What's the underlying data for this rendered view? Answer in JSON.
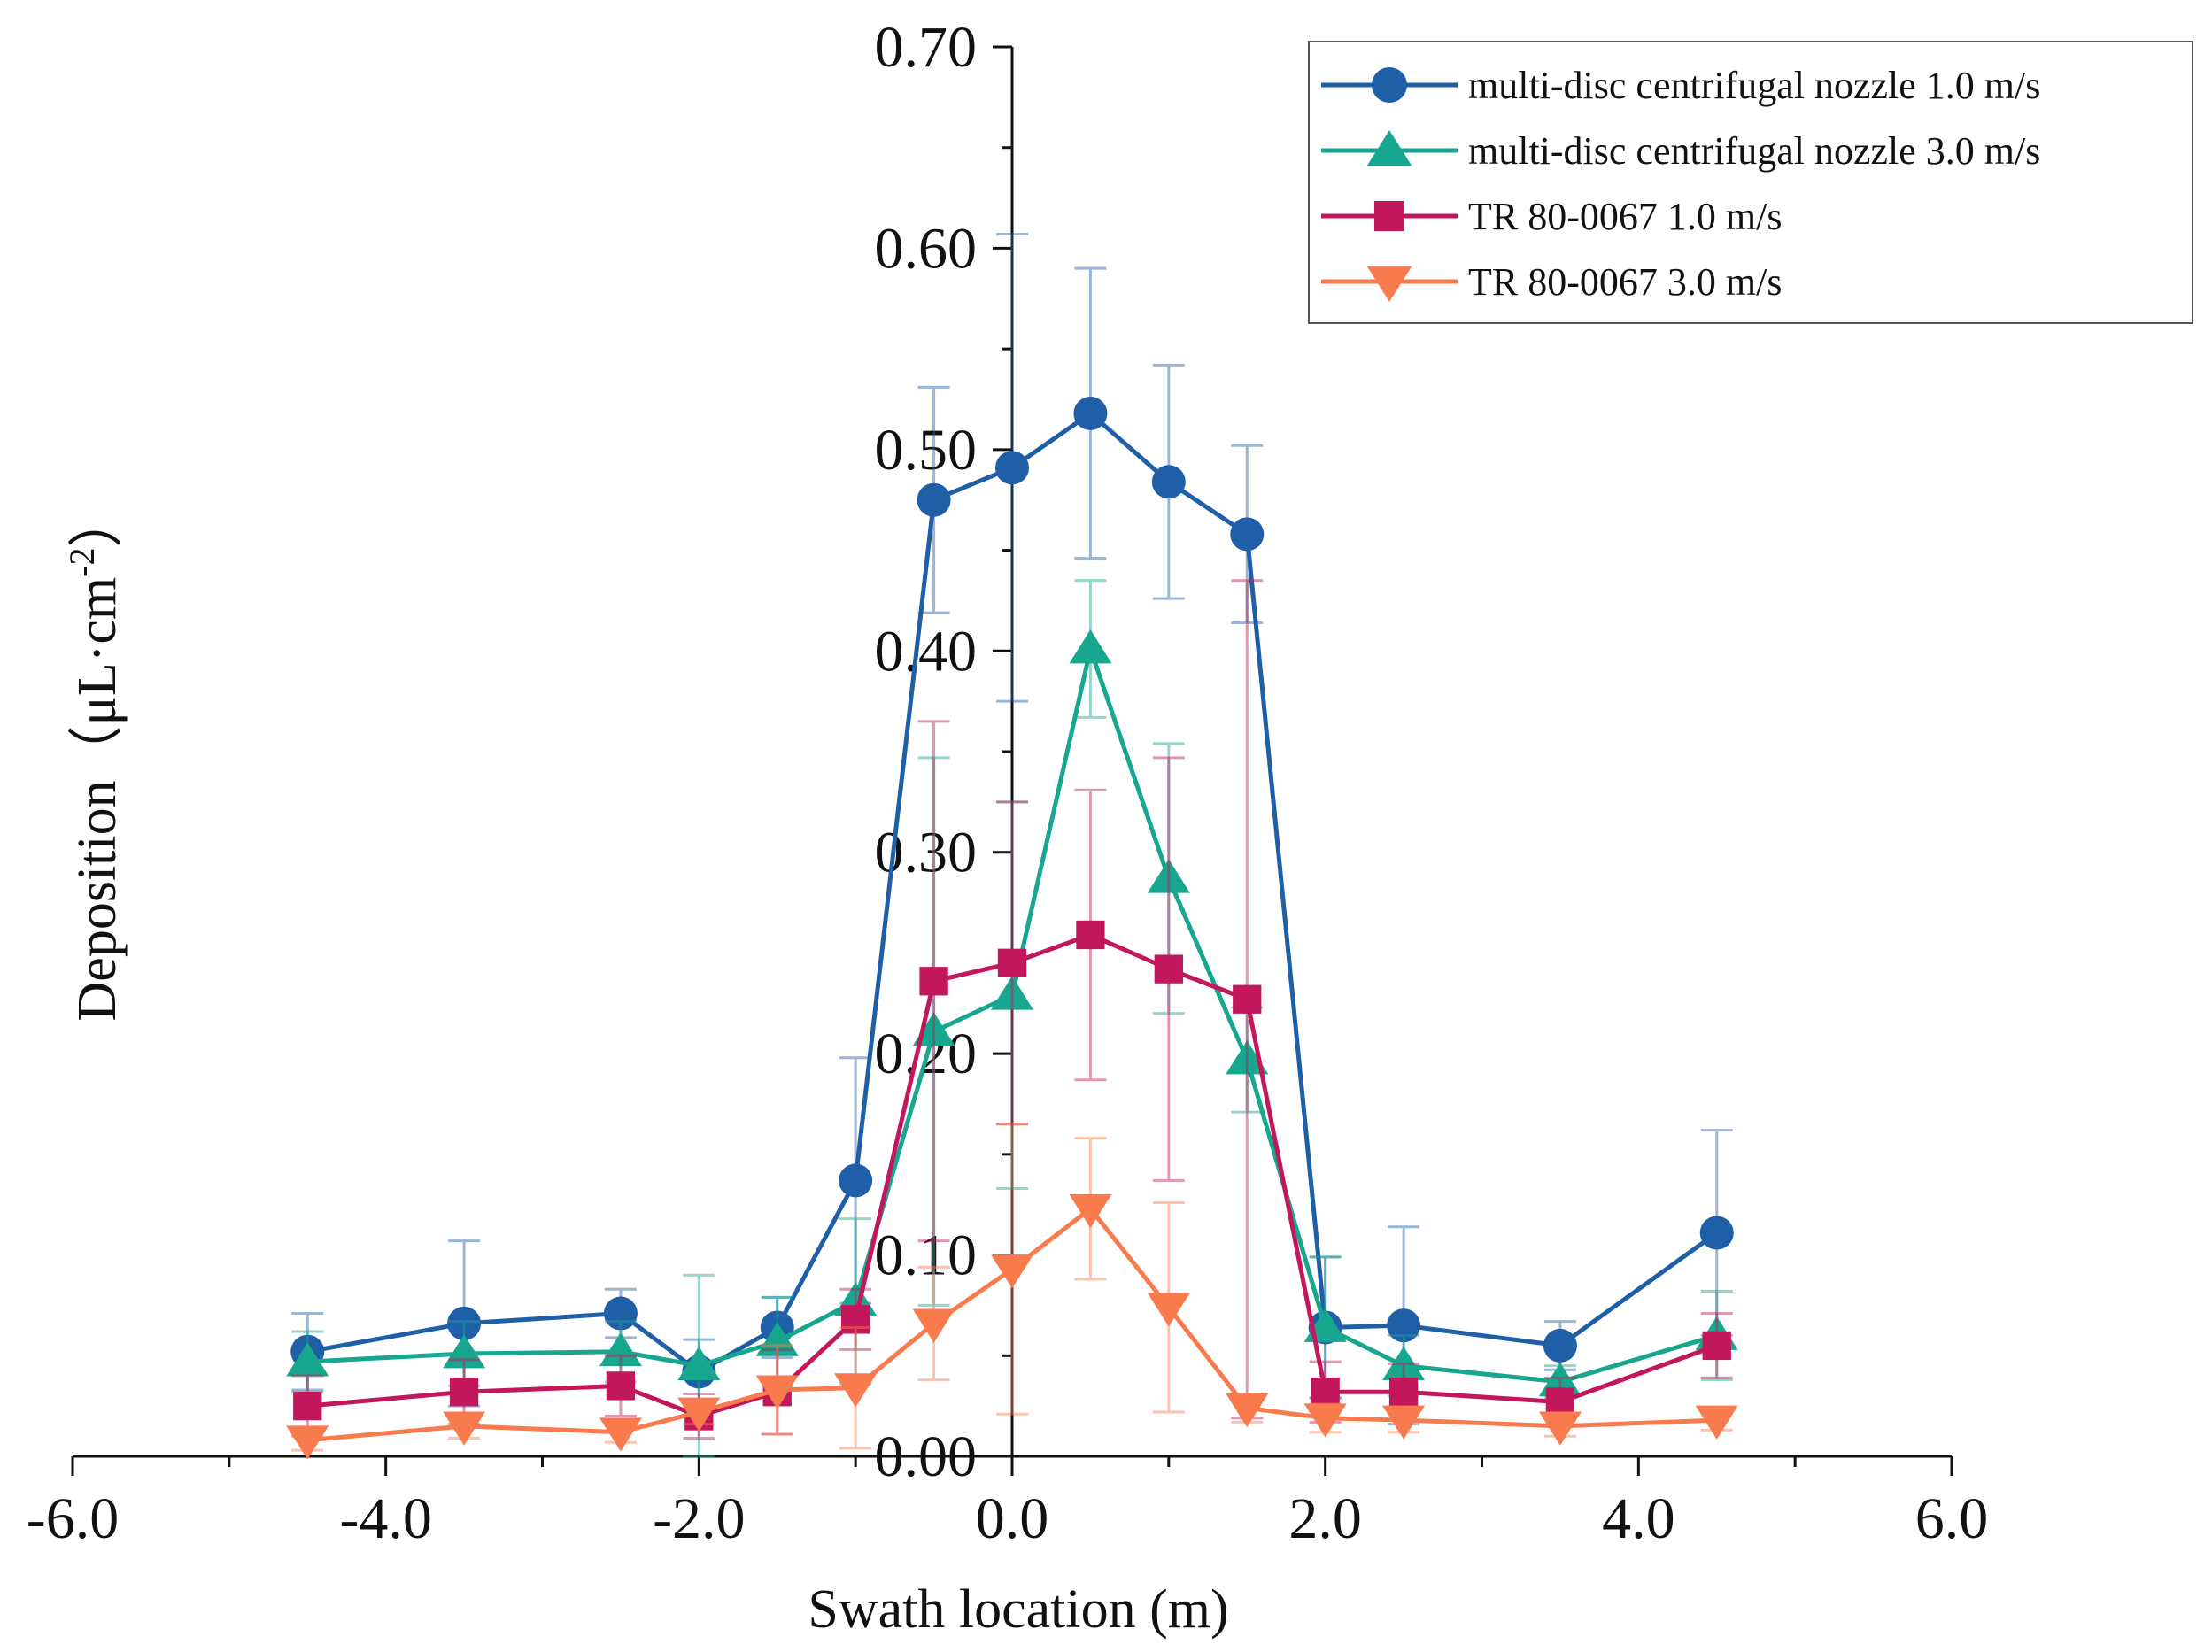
{
  "chart_data": {
    "type": "line",
    "title": "",
    "xlabel": "Swath location (m)",
    "ylabel": "Deposition（μL·cm⁻²）",
    "ylabel_main": "Deposition（μL·cm",
    "ylabel_sup": "-2",
    "ylabel_close": "）",
    "xlim": [
      -6.0,
      6.0
    ],
    "ylim": [
      0.0,
      0.7
    ],
    "xticks": [
      "-6.0",
      "-4.0",
      "-2.0",
      "0.0",
      "2.0",
      "4.0",
      "6.0"
    ],
    "yticks": [
      "0.00",
      "0.10",
      "0.20",
      "0.30",
      "0.40",
      "0.50",
      "0.60",
      "0.70"
    ],
    "x": [
      -4.5,
      -3.5,
      -2.5,
      -2.0,
      -1.5,
      -1.0,
      -0.5,
      0.0,
      0.5,
      1.0,
      1.5,
      2.0,
      2.5,
      3.5,
      4.5
    ],
    "legend_position": "top-right",
    "series": [
      {
        "name": "multi-disc centrifugal nozzle 1.0 m/s",
        "color": "#1f5fa8",
        "marker": "circle",
        "values": [
          0.052,
          0.066,
          0.071,
          0.042,
          0.064,
          0.137,
          0.475,
          0.491,
          0.518,
          0.484,
          0.458,
          0.064,
          0.065,
          0.055,
          0.111
        ],
        "errors": [
          0.019,
          0.041,
          0.012,
          0.016,
          0.015,
          0.061,
          0.056,
          0.116,
          0.072,
          0.058,
          0.044,
          0.035,
          0.049,
          0.012,
          0.051
        ]
      },
      {
        "name": "multi-disc centrifugal nozzle 3.0 m/s",
        "color": "#17a68e",
        "marker": "triangle-up",
        "values": [
          0.047,
          0.051,
          0.052,
          0.045,
          0.057,
          0.077,
          0.211,
          0.229,
          0.401,
          0.287,
          0.197,
          0.064,
          0.045,
          0.037,
          0.06
        ],
        "errors": [
          0.015,
          0.016,
          0.015,
          0.045,
          0.022,
          0.041,
          0.136,
          0.096,
          0.034,
          0.067,
          0.026,
          0.035,
          0.015,
          0.008,
          0.022
        ]
      },
      {
        "name": "TR 80-0067 1.0 m/s",
        "color": "#c2185b",
        "marker": "square",
        "values": [
          0.025,
          0.032,
          0.035,
          0.02,
          0.032,
          0.068,
          0.236,
          0.245,
          0.259,
          0.242,
          0.227,
          0.032,
          0.032,
          0.027,
          0.055
        ],
        "errors": [
          0.015,
          0.016,
          0.015,
          0.011,
          0.021,
          0.015,
          0.129,
          0.08,
          0.072,
          0.105,
          0.208,
          0.015,
          0.014,
          0.012,
          0.016
        ]
      },
      {
        "name": "TR 80-0067 3.0 m/s",
        "color": "#f97a4c",
        "marker": "triangle-down",
        "values": [
          0.008,
          0.015,
          0.012,
          0.022,
          0.033,
          0.034,
          0.066,
          0.093,
          0.123,
          0.074,
          0.024,
          0.019,
          0.018,
          0.015,
          0.018
        ],
        "errors": [
          0.005,
          0.006,
          0.005,
          0.006,
          0.022,
          0.03,
          0.028,
          0.072,
          0.035,
          0.052,
          0.007,
          0.007,
          0.006,
          0.005,
          0.005
        ]
      }
    ]
  }
}
